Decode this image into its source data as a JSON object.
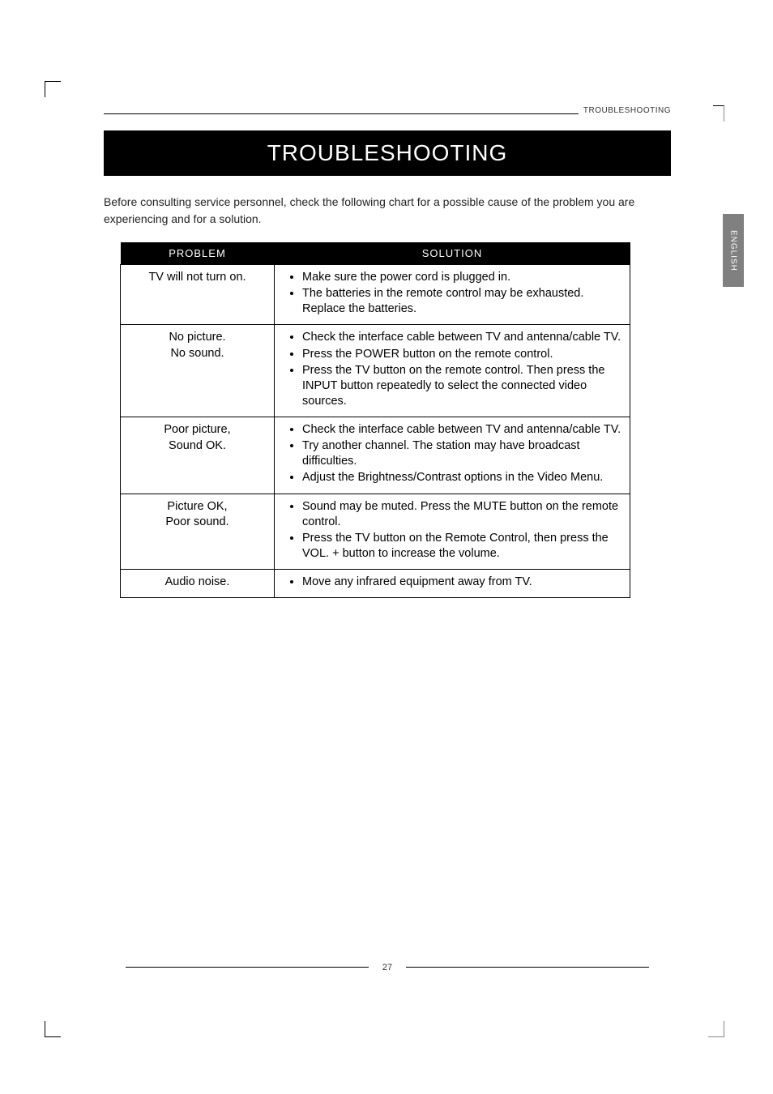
{
  "header": {
    "section_label": "TROUBLESHOOTING"
  },
  "title": "TROUBLESHOOTING",
  "intro": "Before consulting service personnel, check the following chart for a possible cause of the problem you are experiencing and for a solution.",
  "side_tab": "ENGLISH",
  "table": {
    "columns": [
      "PROBLEM",
      "SOLUTION"
    ],
    "rows": [
      {
        "problem": "TV will not turn on.",
        "solutions": [
          "Make sure the power cord is plugged in.",
          "The batteries in the remote control may be exhausted. Replace the batteries."
        ]
      },
      {
        "problem": "No picture.\nNo sound.",
        "solutions": [
          "Check the interface cable between TV and antenna/cable TV.",
          "Press the POWER button on the remote control.",
          "Press the TV button on the remote control. Then press the INPUT button repeatedly to select the connected video sources."
        ]
      },
      {
        "problem": "Poor picture,\nSound OK.",
        "solutions": [
          "Check the interface cable between TV and antenna/cable TV.",
          "Try another channel. The station may have broadcast difficulties.",
          "Adjust the Brightness/Contrast options in the Video Menu."
        ]
      },
      {
        "problem": "Picture OK,\nPoor sound.",
        "solutions": [
          "Sound may be muted. Press the MUTE button on the remote control.",
          "Press the TV button on the Remote Control, then press the VOL. + button to increase the volume."
        ]
      },
      {
        "problem": "Audio noise.",
        "solutions": [
          "Move any infrared equipment away from TV."
        ]
      }
    ]
  },
  "footer": {
    "page_number": "27"
  },
  "colors": {
    "title_bg": "#000000",
    "title_fg": "#ffffff",
    "sidetab_bg": "#808080",
    "table_border": "#000000",
    "body_text": "#222222"
  }
}
